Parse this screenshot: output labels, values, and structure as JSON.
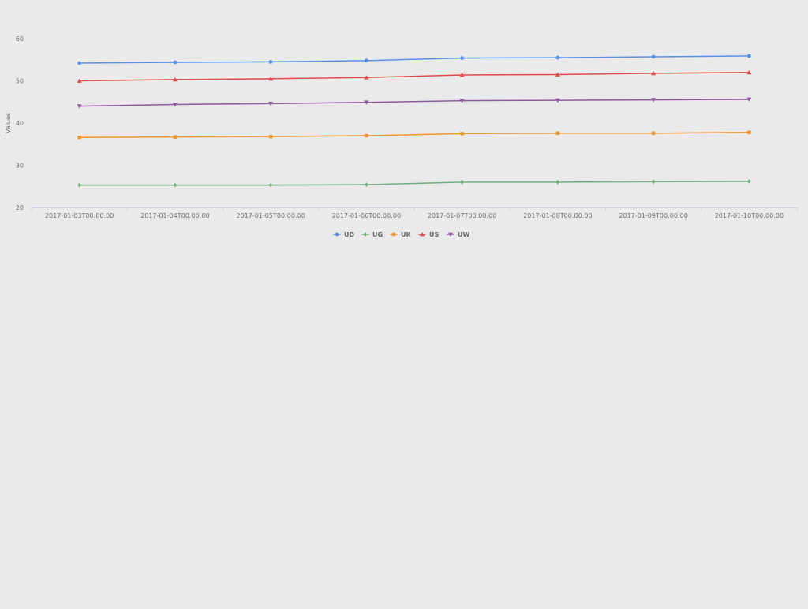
{
  "chart_data": {
    "type": "line",
    "title": "",
    "xlabel": "",
    "ylabel": "Values",
    "ylim": [
      20,
      60
    ],
    "yticks": [
      20,
      30,
      40,
      50,
      60
    ],
    "grid": false,
    "legend_position": "bottom-center",
    "x": [
      "2017-01-03T00:00:00",
      "2017-01-04T00:00:00",
      "2017-01-05T00:00:00",
      "2017-01-06T00:00:00",
      "2017-01-07T00:00:00",
      "2017-01-08T00:00:00",
      "2017-01-09T00:00:00",
      "2017-01-10T00:00:00"
    ],
    "series": [
      {
        "name": "UD",
        "color": "#5a8fe6",
        "marker": "circle",
        "values": [
          54.2,
          54.4,
          54.5,
          54.8,
          55.4,
          55.5,
          55.7,
          55.9
        ]
      },
      {
        "name": "UG",
        "color": "#6fb07c",
        "marker": "diamond",
        "values": [
          25.3,
          25.3,
          25.3,
          25.4,
          26.0,
          26.0,
          26.1,
          26.2
        ]
      },
      {
        "name": "UK",
        "color": "#f0962d",
        "marker": "square",
        "values": [
          36.6,
          36.7,
          36.8,
          37.0,
          37.5,
          37.6,
          37.6,
          37.8
        ]
      },
      {
        "name": "US",
        "color": "#de4b4b",
        "marker": "triangle",
        "values": [
          50.0,
          50.3,
          50.5,
          50.8,
          51.4,
          51.5,
          51.8,
          52.0
        ]
      },
      {
        "name": "UW",
        "color": "#8e5a9e",
        "marker": "triangle-down",
        "values": [
          44.0,
          44.4,
          44.6,
          44.9,
          45.3,
          45.4,
          45.5,
          45.6
        ]
      }
    ]
  }
}
